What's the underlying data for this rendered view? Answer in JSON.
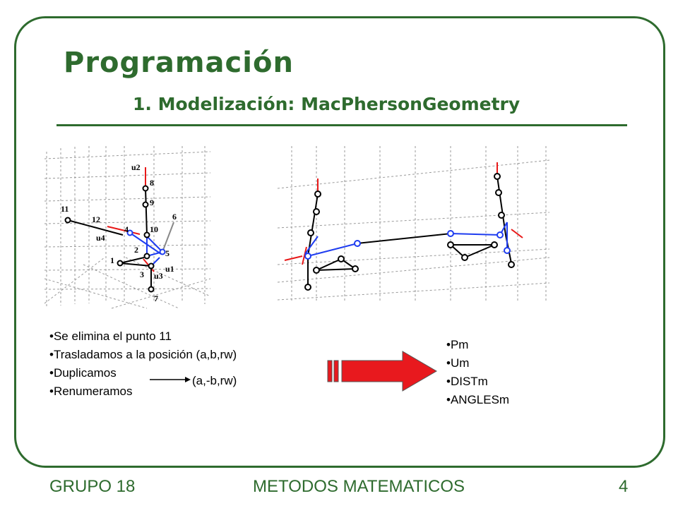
{
  "slide": {
    "title": "Programación",
    "subtitle": "1. Modelización: MacPhersonGeometry"
  },
  "left_figure": {
    "labels": [
      "u2",
      "8",
      "9",
      "11",
      "12",
      "4",
      "10",
      "6",
      "u4",
      "2",
      "5",
      "1",
      "u1",
      "3",
      "u3",
      "7"
    ]
  },
  "bullets_left": {
    "items": [
      "Se elimina el punto 11",
      "Trasladamos a la posición (a,b,rw)",
      "Duplicamos",
      "Renumeramos"
    ],
    "duplicate_target": "(a,-b,rw)"
  },
  "bullets_right": {
    "items": [
      "Pm",
      "Um",
      "DISTm",
      "ANGLESm"
    ]
  },
  "footer": {
    "group": "GRUPO 18",
    "course": "METODOS MATEMATICOS",
    "page": "4"
  },
  "colors": {
    "accent": "#2e6b2e",
    "arrow_fill": "#e8191e",
    "blue_line": "#1f3df0",
    "red_line": "#e81818"
  }
}
